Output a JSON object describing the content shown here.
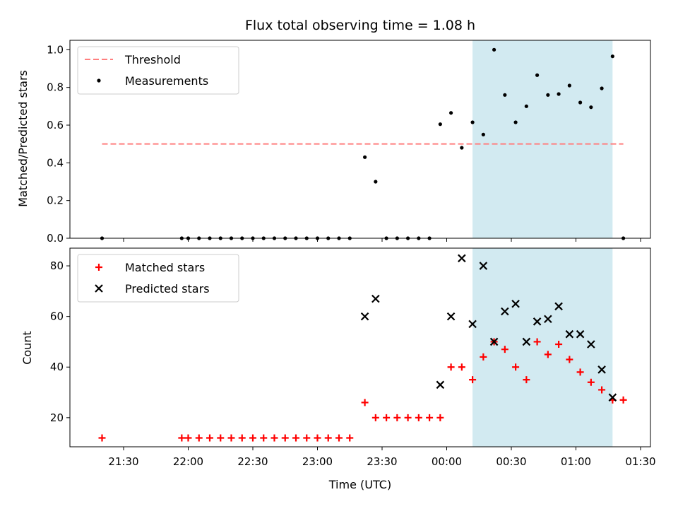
{
  "chart_data": {
    "title": "Flux total observing time = 1.08 h",
    "xlabel": "Time (UTC)",
    "x_tick_labels": [
      "21:30",
      "22:00",
      "22:30",
      "23:00",
      "23:30",
      "00:00",
      "00:30",
      "01:00",
      "01:30"
    ],
    "highlight_span": [
      "00:12",
      "01:17"
    ],
    "highlight_color": "#add8e6",
    "panels": [
      {
        "type": "scatter",
        "ylabel": "Matched/Predicted stars",
        "ylim": [
          0,
          1.05
        ],
        "y_ticks": [
          0.0,
          0.2,
          0.4,
          0.6,
          0.8,
          1.0
        ],
        "y_tick_labels": [
          "0.0",
          "0.2",
          "0.4",
          "0.6",
          "0.8",
          "1.0"
        ],
        "legend_position": "upper left",
        "threshold": {
          "name": "Threshold",
          "value": 0.5,
          "x_range": [
            "21:20",
            "01:22"
          ],
          "color": "#ff7f7f"
        },
        "series": [
          {
            "name": "Measurements",
            "color": "#000000",
            "marker": "dot",
            "points": [
              [
                "21:20",
                0.0
              ],
              [
                "21:57",
                0.0
              ],
              [
                "22:00",
                0.0
              ],
              [
                "22:05",
                0.0
              ],
              [
                "22:10",
                0.0
              ],
              [
                "22:15",
                0.0
              ],
              [
                "22:20",
                0.0
              ],
              [
                "22:25",
                0.0
              ],
              [
                "22:30",
                0.0
              ],
              [
                "22:35",
                0.0
              ],
              [
                "22:40",
                0.0
              ],
              [
                "22:45",
                0.0
              ],
              [
                "22:50",
                0.0
              ],
              [
                "22:55",
                0.0
              ],
              [
                "23:00",
                0.0
              ],
              [
                "23:05",
                0.0
              ],
              [
                "23:10",
                0.0
              ],
              [
                "23:15",
                0.0
              ],
              [
                "23:22",
                0.43
              ],
              [
                "23:27",
                0.3
              ],
              [
                "23:32",
                0.0
              ],
              [
                "23:37",
                0.0
              ],
              [
                "23:42",
                0.0
              ],
              [
                "23:47",
                0.0
              ],
              [
                "23:52",
                0.0
              ],
              [
                "23:57",
                0.605
              ],
              [
                "00:02",
                0.665
              ],
              [
                "00:07",
                0.48
              ],
              [
                "00:12",
                0.615
              ],
              [
                "00:17",
                0.55
              ],
              [
                "00:22",
                1.0
              ],
              [
                "00:27",
                0.76
              ],
              [
                "00:32",
                0.615
              ],
              [
                "00:37",
                0.7
              ],
              [
                "00:42",
                0.865
              ],
              [
                "00:47",
                0.76
              ],
              [
                "00:52",
                0.765
              ],
              [
                "00:57",
                0.81
              ],
              [
                "01:02",
                0.72
              ],
              [
                "01:07",
                0.695
              ],
              [
                "01:12",
                0.795
              ],
              [
                "01:17",
                0.965
              ],
              [
                "01:22",
                0.0
              ]
            ]
          }
        ]
      },
      {
        "type": "scatter",
        "ylabel": "Count",
        "ylim": [
          8.5,
          87
        ],
        "y_ticks": [
          20,
          40,
          60,
          80
        ],
        "y_tick_labels": [
          "20",
          "40",
          "60",
          "80"
        ],
        "legend_position": "upper left",
        "series": [
          {
            "name": "Matched stars",
            "color": "#ff0000",
            "marker": "plus",
            "points": [
              [
                "21:20",
                12
              ],
              [
                "21:57",
                12
              ],
              [
                "22:00",
                12
              ],
              [
                "22:05",
                12
              ],
              [
                "22:10",
                12
              ],
              [
                "22:15",
                12
              ],
              [
                "22:20",
                12
              ],
              [
                "22:25",
                12
              ],
              [
                "22:30",
                12
              ],
              [
                "22:35",
                12
              ],
              [
                "22:40",
                12
              ],
              [
                "22:45",
                12
              ],
              [
                "22:50",
                12
              ],
              [
                "22:55",
                12
              ],
              [
                "23:00",
                12
              ],
              [
                "23:05",
                12
              ],
              [
                "23:10",
                12
              ],
              [
                "23:15",
                12
              ],
              [
                "23:22",
                26
              ],
              [
                "23:27",
                20
              ],
              [
                "23:32",
                20
              ],
              [
                "23:37",
                20
              ],
              [
                "23:42",
                20
              ],
              [
                "23:47",
                20
              ],
              [
                "23:52",
                20
              ],
              [
                "23:57",
                20
              ],
              [
                "00:02",
                40
              ],
              [
                "00:07",
                40
              ],
              [
                "00:12",
                35
              ],
              [
                "00:17",
                44
              ],
              [
                "00:22",
                50
              ],
              [
                "00:27",
                47
              ],
              [
                "00:32",
                40
              ],
              [
                "00:37",
                35
              ],
              [
                "00:42",
                50
              ],
              [
                "00:47",
                45
              ],
              [
                "00:52",
                49
              ],
              [
                "00:57",
                43
              ],
              [
                "01:02",
                38
              ],
              [
                "01:07",
                34
              ],
              [
                "01:12",
                31
              ],
              [
                "01:17",
                27
              ],
              [
                "01:22",
                27
              ]
            ]
          },
          {
            "name": "Predicted stars",
            "color": "#000000",
            "marker": "x",
            "points": [
              [
                "23:22",
                60
              ],
              [
                "23:27",
                67
              ],
              [
                "23:57",
                33
              ],
              [
                "00:02",
                60
              ],
              [
                "00:07",
                83
              ],
              [
                "00:12",
                57
              ],
              [
                "00:17",
                80
              ],
              [
                "00:22",
                50
              ],
              [
                "00:27",
                62
              ],
              [
                "00:32",
                65
              ],
              [
                "00:37",
                50
              ],
              [
                "00:42",
                58
              ],
              [
                "00:47",
                59
              ],
              [
                "00:52",
                64
              ],
              [
                "00:57",
                53
              ],
              [
                "01:02",
                53
              ],
              [
                "01:07",
                49
              ],
              [
                "01:12",
                39
              ],
              [
                "01:17",
                28
              ]
            ]
          }
        ]
      }
    ]
  }
}
